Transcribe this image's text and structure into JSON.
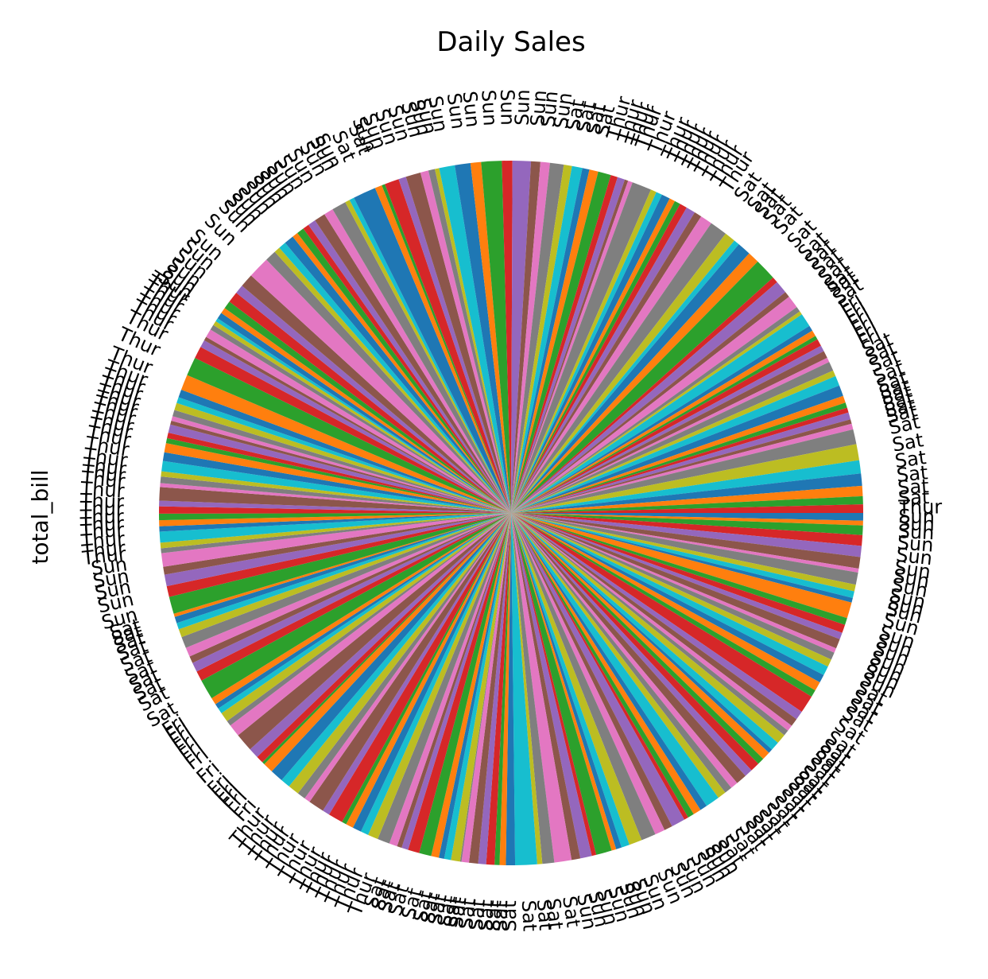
{
  "chart_data": {
    "type": "pie",
    "title": "Daily Sales",
    "y_label": "total_bill",
    "colors": [
      "#1f77b4",
      "#ff7f0e",
      "#2ca02c",
      "#d62728",
      "#9467bd",
      "#8c564b",
      "#e377c2",
      "#7f7f7f",
      "#bcbd22",
      "#17becf"
    ],
    "categories": [
      "Sun",
      "Sun",
      "Sun",
      "Sun",
      "Sun",
      "Sun",
      "Sun",
      "Sun",
      "Sun",
      "Sun",
      "Sun",
      "Sun",
      "Sun",
      "Sun",
      "Sun",
      "Sun",
      "Sun",
      "Sun",
      "Sun",
      "Sat",
      "Sat",
      "Sat",
      "Sat",
      "Sat",
      "Sat",
      "Sat",
      "Sat",
      "Sat",
      "Sat",
      "Sat",
      "Sat",
      "Sat",
      "Sat",
      "Sat",
      "Sat",
      "Sat",
      "Sat",
      "Sat",
      "Sat",
      "Sat",
      "Sat",
      "Sun",
      "Sun",
      "Sun",
      "Sun",
      "Sun",
      "Sun",
      "Sun",
      "Sun",
      "Sun",
      "Sun",
      "Sun",
      "Sun",
      "Sun",
      "Sun",
      "Sun",
      "Sat",
      "Sat",
      "Sat",
      "Sat",
      "Sat",
      "Sat",
      "Sat",
      "Sat",
      "Sat",
      "Sat",
      "Sat",
      "Sat",
      "Sat",
      "Sat",
      "Sat",
      "Sat",
      "Sat",
      "Sat",
      "Sat",
      "Sat",
      "Sat",
      "Thur",
      "Thur",
      "Thur",
      "Thur",
      "Thur",
      "Thur",
      "Thur",
      "Thur",
      "Thur",
      "Thur",
      "Thur",
      "Thur",
      "Thur",
      "Fri",
      "Fri",
      "Fri",
      "Fri",
      "Fri",
      "Fri",
      "Fri",
      "Fri",
      "Fri",
      "Fri",
      "Fri",
      "Fri",
      "Sat",
      "Sat",
      "Sat",
      "Sat",
      "Sat",
      "Sat",
      "Sat",
      "Sat",
      "Sat",
      "Sat",
      "Sun",
      "Sun",
      "Sun",
      "Sun",
      "Sun",
      "Thur",
      "Thur",
      "Thur",
      "Thur",
      "Thur",
      "Thur",
      "Thur",
      "Thur",
      "Thur",
      "Thur",
      "Thur",
      "Thur",
      "Thur",
      "Thur",
      "Thur",
      "Thur",
      "Thur",
      "Thur",
      "Thur",
      "Thur",
      "Thur",
      "Thur",
      "Thur",
      "Thur",
      "Thur",
      "Thur",
      "Thur",
      "Thur",
      "Thur",
      "Thur",
      "Thur",
      "Thur",
      "Thur",
      "Sun",
      "Sun",
      "Sun",
      "Sun",
      "Sun",
      "Sun",
      "Sun",
      "Sun",
      "Sun",
      "Sun",
      "Sun",
      "Sun",
      "Sun",
      "Sun",
      "Sun",
      "Sun",
      "Sun",
      "Sun",
      "Sun",
      "Sun",
      "Sat",
      "Sat",
      "Sun",
      "Sun",
      "Sun",
      "Sun",
      "Sun",
      "Sun",
      "Sun",
      "Sun",
      "Sun",
      "Sun",
      "Sun",
      "Sun",
      "Sun",
      "Sun",
      "Sun",
      "Sun",
      "Sat",
      "Sat",
      "Sat",
      "Sat",
      "Thur",
      "Thur",
      "Thur",
      "Thur",
      "Thur",
      "Thur",
      "Thur",
      "Thur",
      "Thur",
      "Thur",
      "Thur",
      "Thur",
      "Thur",
      "Thur",
      "Thur",
      "Sat",
      "Sat",
      "Sat",
      "Sat",
      "Sat",
      "Sat",
      "Sat",
      "Sat",
      "Sat",
      "Sat",
      "Sat",
      "Sat",
      "Sat",
      "Fri",
      "Fri",
      "Fri",
      "Fri",
      "Fri",
      "Fri",
      "Fri",
      "Sat",
      "Sat",
      "Sat",
      "Sat",
      "Sat",
      "Sat",
      "Sat",
      "Sat",
      "Sat",
      "Sat",
      "Sat",
      "Sat",
      "Sat",
      "Sat",
      "Sat",
      "Sat",
      "Thur"
    ],
    "values": [
      16.99,
      10.34,
      21.01,
      23.68,
      24.59,
      25.29,
      8.77,
      26.88,
      15.04,
      14.78,
      10.27,
      35.26,
      15.42,
      18.43,
      14.83,
      21.58,
      10.33,
      16.29,
      16.97,
      20.65,
      17.92,
      20.29,
      15.77,
      39.42,
      19.82,
      17.81,
      13.37,
      12.69,
      21.7,
      19.65,
      9.55,
      18.35,
      15.06,
      20.69,
      17.78,
      24.06,
      16.31,
      16.93,
      18.69,
      31.27,
      16.04,
      17.46,
      13.94,
      9.68,
      30.4,
      18.29,
      22.23,
      32.4,
      28.55,
      18.04,
      12.54,
      10.29,
      34.81,
      9.94,
      25.56,
      19.49,
      38.01,
      26.41,
      11.24,
      48.27,
      20.29,
      13.81,
      11.02,
      18.29,
      17.59,
      20.08,
      16.45,
      3.07,
      20.23,
      15.01,
      12.02,
      17.07,
      26.86,
      25.28,
      14.73,
      10.51,
      17.92,
      27.2,
      22.76,
      17.29,
      19.44,
      16.66,
      10.07,
      32.68,
      15.98,
      34.83,
      13.03,
      18.28,
      24.71,
      21.16,
      28.97,
      22.49,
      5.75,
      16.32,
      22.75,
      40.17,
      27.28,
      12.03,
      21.01,
      12.46,
      11.35,
      15.38,
      44.3,
      22.42,
      20.92,
      15.36,
      20.49,
      25.21,
      18.24,
      14.31,
      14.0,
      7.25,
      38.07,
      23.95,
      25.71,
      17.31,
      29.93,
      10.65,
      12.43,
      24.08,
      11.69,
      13.42,
      14.26,
      15.95,
      12.48,
      29.8,
      8.52,
      14.52,
      11.38,
      22.82,
      19.08,
      20.27,
      11.17,
      12.26,
      18.26,
      8.51,
      10.33,
      14.15,
      16.0,
      13.16,
      17.47,
      34.3,
      41.19,
      27.05,
      16.43,
      8.35,
      18.64,
      11.87,
      9.78,
      7.51,
      14.07,
      13.13,
      17.26,
      24.55,
      19.77,
      29.85,
      48.17,
      25.0,
      13.39,
      16.49,
      21.5,
      12.66,
      16.21,
      13.81,
      17.51,
      24.52,
      20.76,
      31.71,
      10.59,
      10.63,
      50.81,
      15.81,
      7.25,
      31.85,
      16.82,
      32.9,
      17.89,
      14.48,
      9.6,
      34.63,
      34.65,
      23.33,
      45.35,
      23.17,
      40.55,
      20.69,
      20.9,
      30.46,
      18.15,
      23.1,
      15.69,
      19.81,
      28.44,
      15.48,
      16.58,
      7.56,
      10.34,
      43.11,
      13.0,
      13.51,
      18.71,
      12.74,
      13.0,
      16.4,
      20.53,
      16.47,
      26.59,
      38.73,
      24.27,
      12.76,
      30.06,
      25.89,
      48.33,
      13.27,
      28.17,
      12.9,
      28.15,
      11.59,
      7.74,
      30.14,
      12.16,
      13.42,
      8.58,
      15.98,
      13.42,
      16.27,
      10.09,
      20.45,
      13.28,
      22.12,
      24.01,
      15.69,
      11.61,
      10.77,
      15.53,
      10.07,
      12.6,
      32.83,
      35.83,
      29.03,
      27.18,
      22.67,
      17.82,
      18.78
    ]
  }
}
